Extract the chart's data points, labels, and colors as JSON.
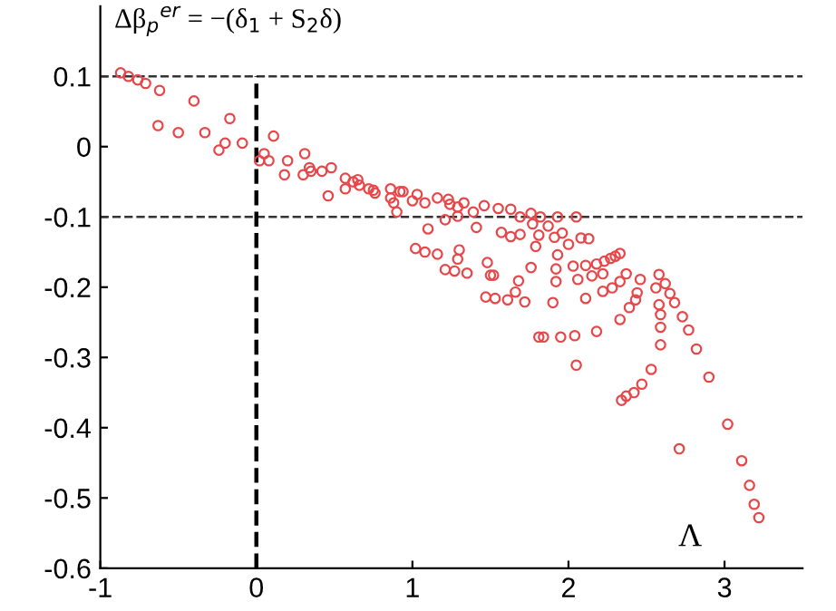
{
  "chart_data": {
    "type": "scatter",
    "xlabel": "Λ",
    "ylabel": "Δβ$_{p}$$^{er}$ = −(δ$_{1}$ + S$_{2}$δ)",
    "xlim": [
      -1,
      3.5
    ],
    "ylim": [
      -0.6,
      0.2
    ],
    "xticks": [
      -1,
      0,
      1,
      2,
      3
    ],
    "yticks": [
      -0.6,
      -0.5,
      -0.4,
      -0.3,
      -0.2,
      -0.1,
      0,
      0.1
    ],
    "grid": false,
    "legend": false,
    "marker": "circle",
    "ref_lines": [
      {
        "axis": "y",
        "value": 0.1,
        "label": null,
        "color": "#333333",
        "line_style": "dashed"
      },
      {
        "axis": "y",
        "value": -0.1,
        "label": null,
        "color": "#333333",
        "line_style": "dashed"
      },
      {
        "axis": "x",
        "value": 0,
        "label": null,
        "color": "#000000",
        "line_style": "dashed"
      }
    ],
    "series": [
      {
        "color": "#e8474a",
        "x": [
          -0.87,
          -0.82,
          -0.76,
          -0.71,
          -0.62,
          -0.4,
          -0.63,
          -0.5,
          -0.33,
          -0.17,
          -0.24,
          -0.2,
          -0.09,
          0.11,
          0.05,
          0.08,
          0.02,
          0.2,
          0.18,
          0.31,
          0.3,
          0.34,
          0.35,
          0.42,
          0.48,
          0.46,
          0.57,
          0.57,
          0.62,
          0.65,
          0.66,
          0.72,
          0.75,
          0.76,
          0.86,
          0.86,
          0.88,
          0.9,
          0.92,
          0.94,
          1.0,
          1.03,
          1.08,
          1.1,
          1.02,
          1.08,
          1.16,
          1.16,
          1.21,
          1.21,
          1.27,
          1.35,
          1.3,
          1.29,
          1.23,
          1.29,
          1.33,
          1.24,
          1.29,
          1.39,
          1.41,
          1.46,
          1.48,
          1.5,
          1.52,
          1.47,
          1.53,
          1.55,
          1.57,
          1.63,
          1.63,
          1.61,
          1.66,
          1.68,
          1.69,
          1.69,
          1.72,
          1.76,
          1.77,
          1.76,
          1.79,
          1.82,
          1.81,
          1.81,
          1.84,
          1.87,
          1.9,
          1.93,
          1.91,
          1.93,
          1.92,
          1.92,
          1.95,
          1.96,
          2.0,
          2.03,
          2.05,
          2.04,
          2.05,
          2.06,
          2.08,
          2.13,
          2.11,
          2.11,
          2.18,
          2.22,
          2.18,
          2.23,
          2.22,
          2.27,
          2.28,
          2.3,
          2.33,
          2.33,
          2.33,
          2.39,
          2.34,
          2.37,
          2.37,
          2.46,
          2.44,
          2.43,
          2.53,
          2.47,
          2.42,
          2.58,
          2.62,
          2.65,
          2.68,
          2.56,
          2.58,
          2.59,
          2.59,
          2.59,
          2.73,
          2.77,
          2.82,
          2.9,
          2.71,
          3.02,
          3.11,
          3.16,
          3.19,
          3.22,
          2.15
        ],
        "values": [
          0.105,
          0.1,
          0.095,
          0.09,
          0.08,
          0.065,
          0.03,
          0.02,
          0.02,
          0.04,
          -0.005,
          0.005,
          0.005,
          0.015,
          -0.01,
          -0.02,
          -0.02,
          -0.02,
          -0.04,
          -0.01,
          -0.04,
          -0.03,
          -0.035,
          -0.035,
          -0.03,
          -0.07,
          -0.045,
          -0.06,
          -0.05,
          -0.047,
          -0.055,
          -0.06,
          -0.062,
          -0.066,
          -0.06,
          -0.073,
          -0.08,
          -0.093,
          -0.064,
          -0.064,
          -0.077,
          -0.068,
          -0.08,
          -0.117,
          -0.145,
          -0.15,
          -0.153,
          -0.073,
          -0.104,
          -0.175,
          -0.177,
          -0.18,
          -0.147,
          -0.16,
          -0.075,
          -0.086,
          -0.08,
          -0.082,
          -0.099,
          -0.093,
          -0.115,
          -0.084,
          -0.165,
          -0.183,
          -0.183,
          -0.214,
          -0.216,
          -0.088,
          -0.122,
          -0.089,
          -0.128,
          -0.218,
          -0.207,
          -0.191,
          -0.1,
          -0.125,
          -0.221,
          -0.095,
          -0.11,
          -0.172,
          -0.142,
          -0.1,
          -0.126,
          -0.271,
          -0.271,
          -0.113,
          -0.222,
          -0.1,
          -0.129,
          -0.154,
          -0.174,
          -0.192,
          -0.271,
          -0.123,
          -0.139,
          -0.17,
          -0.1,
          -0.269,
          -0.311,
          -0.189,
          -0.13,
          -0.131,
          -0.169,
          -0.216,
          -0.167,
          -0.181,
          -0.263,
          -0.163,
          -0.206,
          -0.159,
          -0.201,
          -0.156,
          -0.152,
          -0.192,
          -0.246,
          -0.229,
          -0.361,
          -0.355,
          -0.181,
          -0.189,
          -0.208,
          -0.218,
          -0.317,
          -0.338,
          -0.35,
          -0.182,
          -0.195,
          -0.209,
          -0.222,
          -0.201,
          -0.225,
          -0.239,
          -0.257,
          -0.282,
          -0.242,
          -0.261,
          -0.288,
          -0.328,
          -0.43,
          -0.395,
          -0.447,
          -0.482,
          -0.509,
          -0.528,
          -0.184
        ]
      }
    ]
  }
}
